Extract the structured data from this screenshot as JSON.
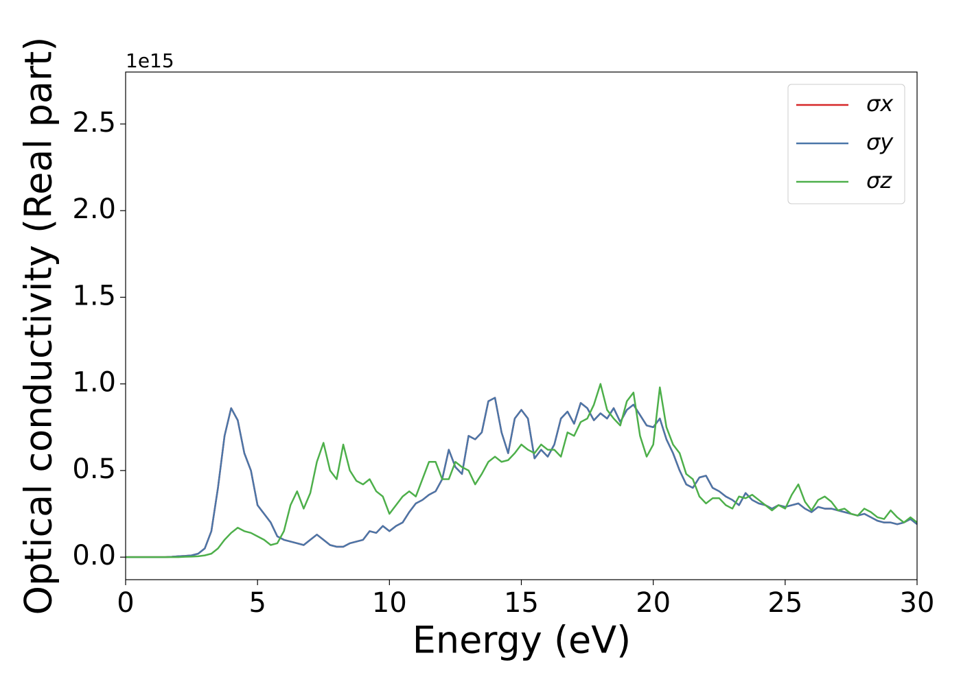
{
  "chart_data": {
    "type": "line",
    "x_label": "Energy (eV)",
    "y_label": "Optical conductivity (Real part)",
    "y_offset_label": "1e15",
    "xlim": [
      0,
      30
    ],
    "xticks": [
      0,
      5,
      10,
      15,
      20,
      25,
      30
    ],
    "ylim": [
      -0.13,
      2.8
    ],
    "yticks": [
      {
        "value": 0,
        "label": "0.0"
      },
      0.5,
      {
        "value": 1,
        "label": "1.0"
      },
      1.5,
      {
        "value": 2,
        "label": "2.0"
      },
      2.5
    ],
    "grid": false,
    "legend": "upper right",
    "x": [
      0,
      0.25,
      0.5,
      0.75,
      1,
      1.25,
      1.5,
      1.75,
      2,
      2.25,
      2.5,
      2.75,
      3,
      3.25,
      3.5,
      3.75,
      4,
      4.25,
      4.5,
      4.75,
      5,
      5.25,
      5.5,
      5.75,
      6,
      6.25,
      6.5,
      6.75,
      7,
      7.25,
      7.5,
      7.75,
      8,
      8.25,
      8.5,
      8.75,
      9,
      9.25,
      9.5,
      9.75,
      10,
      10.25,
      10.5,
      10.75,
      11,
      11.25,
      11.5,
      11.75,
      12,
      12.25,
      12.5,
      12.75,
      13,
      13.25,
      13.5,
      13.75,
      14,
      14.25,
      14.5,
      14.75,
      15,
      15.25,
      15.5,
      15.75,
      16,
      16.25,
      16.5,
      16.75,
      17,
      17.25,
      17.5,
      17.75,
      18,
      18.25,
      18.5,
      18.75,
      19,
      19.25,
      19.5,
      19.75,
      20,
      20.25,
      20.5,
      20.75,
      21,
      21.25,
      21.5,
      21.75,
      22,
      22.25,
      22.5,
      22.75,
      23,
      23.25,
      23.5,
      23.75,
      24,
      24.25,
      24.5,
      24.75,
      25,
      25.25,
      25.5,
      25.75,
      26,
      26.25,
      26.5,
      26.75,
      27,
      27.25,
      27.5,
      27.75,
      28,
      28.25,
      28.5,
      28.75,
      29,
      29.25,
      29.5,
      29.75,
      30
    ],
    "series": [
      {
        "name": "σx",
        "color": "#d62728",
        "values": [
          0,
          0,
          0,
          0,
          0,
          0,
          0,
          0.002,
          0.005,
          0.007,
          0.01,
          0.02,
          0.05,
          0.15,
          0.4,
          0.7,
          0.86,
          0.79,
          0.6,
          0.5,
          0.3,
          0.25,
          0.2,
          0.12,
          0.1,
          0.09,
          0.08,
          0.07,
          0.1,
          0.13,
          0.1,
          0.07,
          0.06,
          0.06,
          0.08,
          0.09,
          0.1,
          0.15,
          0.14,
          0.18,
          0.15,
          0.18,
          0.2,
          0.26,
          0.31,
          0.33,
          0.36,
          0.38,
          0.45,
          0.62,
          0.52,
          0.48,
          0.7,
          0.68,
          0.72,
          0.9,
          0.92,
          0.72,
          0.6,
          0.8,
          0.85,
          0.8,
          0.57,
          0.62,
          0.58,
          0.65,
          0.8,
          0.84,
          0.77,
          0.89,
          0.86,
          0.79,
          0.83,
          0.8,
          0.86,
          0.78,
          0.85,
          0.88,
          0.82,
          0.76,
          0.75,
          0.8,
          0.68,
          0.6,
          0.5,
          0.42,
          0.4,
          0.46,
          0.47,
          0.4,
          0.38,
          0.35,
          0.33,
          0.3,
          0.37,
          0.33,
          0.31,
          0.3,
          0.28,
          0.3,
          0.29,
          0.3,
          0.31,
          0.28,
          0.26,
          0.29,
          0.28,
          0.28,
          0.27,
          0.26,
          0.25,
          0.24,
          0.25,
          0.23,
          0.21,
          0.2,
          0.2,
          0.19,
          0.2,
          0.22,
          0.19
        ]
      },
      {
        "name": "σy",
        "color": "#4a76a8",
        "values": [
          0,
          0,
          0,
          0,
          0,
          0,
          0,
          0.002,
          0.005,
          0.007,
          0.01,
          0.02,
          0.05,
          0.15,
          0.4,
          0.7,
          0.86,
          0.79,
          0.6,
          0.5,
          0.3,
          0.25,
          0.2,
          0.12,
          0.1,
          0.09,
          0.08,
          0.07,
          0.1,
          0.13,
          0.1,
          0.07,
          0.06,
          0.06,
          0.08,
          0.09,
          0.1,
          0.15,
          0.14,
          0.18,
          0.15,
          0.18,
          0.2,
          0.26,
          0.31,
          0.33,
          0.36,
          0.38,
          0.45,
          0.62,
          0.52,
          0.48,
          0.7,
          0.68,
          0.72,
          0.9,
          0.92,
          0.72,
          0.6,
          0.8,
          0.85,
          0.8,
          0.57,
          0.62,
          0.58,
          0.65,
          0.8,
          0.84,
          0.77,
          0.89,
          0.86,
          0.79,
          0.83,
          0.8,
          0.86,
          0.78,
          0.85,
          0.88,
          0.82,
          0.76,
          0.75,
          0.8,
          0.68,
          0.6,
          0.5,
          0.42,
          0.4,
          0.46,
          0.47,
          0.4,
          0.38,
          0.35,
          0.33,
          0.3,
          0.37,
          0.33,
          0.31,
          0.3,
          0.28,
          0.3,
          0.29,
          0.3,
          0.31,
          0.28,
          0.26,
          0.29,
          0.28,
          0.28,
          0.27,
          0.26,
          0.25,
          0.24,
          0.25,
          0.23,
          0.21,
          0.2,
          0.2,
          0.19,
          0.2,
          0.22,
          0.19
        ]
      },
      {
        "name": "σz",
        "color": "#4daf4a",
        "values": [
          0,
          0,
          0,
          0,
          0,
          0,
          0,
          0,
          0,
          0.002,
          0.003,
          0.005,
          0.01,
          0.02,
          0.05,
          0.1,
          0.14,
          0.17,
          0.15,
          0.14,
          0.12,
          0.1,
          0.07,
          0.08,
          0.15,
          0.3,
          0.38,
          0.28,
          0.37,
          0.55,
          0.66,
          0.5,
          0.45,
          0.65,
          0.5,
          0.44,
          0.42,
          0.45,
          0.38,
          0.35,
          0.25,
          0.3,
          0.35,
          0.38,
          0.35,
          0.45,
          0.55,
          0.55,
          0.45,
          0.45,
          0.55,
          0.52,
          0.5,
          0.42,
          0.48,
          0.55,
          0.58,
          0.55,
          0.56,
          0.6,
          0.65,
          0.62,
          0.6,
          0.65,
          0.62,
          0.62,
          0.58,
          0.72,
          0.7,
          0.78,
          0.8,
          0.88,
          1.0,
          0.85,
          0.8,
          0.76,
          0.9,
          0.95,
          0.7,
          0.58,
          0.65,
          0.98,
          0.75,
          0.65,
          0.6,
          0.48,
          0.45,
          0.35,
          0.31,
          0.34,
          0.34,
          0.3,
          0.28,
          0.35,
          0.34,
          0.36,
          0.33,
          0.3,
          0.27,
          0.3,
          0.28,
          0.36,
          0.42,
          0.32,
          0.27,
          0.33,
          0.35,
          0.32,
          0.27,
          0.28,
          0.25,
          0.24,
          0.28,
          0.26,
          0.23,
          0.22,
          0.27,
          0.23,
          0.2,
          0.23,
          0.2
        ]
      }
    ]
  }
}
